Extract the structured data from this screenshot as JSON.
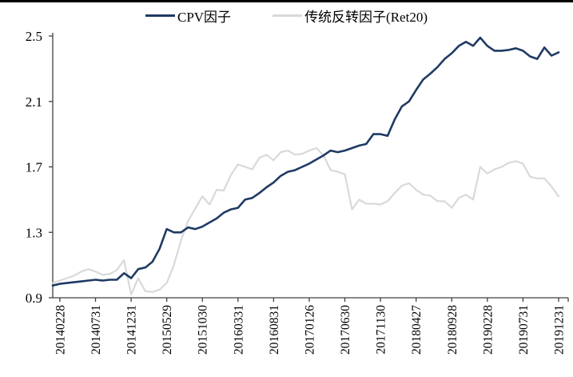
{
  "legend": {
    "items": [
      {
        "label": "CPV因子",
        "color": "#1f3a64"
      },
      {
        "label": "传统反转因子(Ret20)",
        "color": "#d9d9d9"
      }
    ]
  },
  "chart_data": {
    "type": "line",
    "title": "",
    "xlabel": "",
    "ylabel": "",
    "ylim": [
      0.9,
      2.5
    ],
    "grid": false,
    "legend_position": "top",
    "background": "#ffffff",
    "axis_color": "#404040",
    "text_color": "#000000",
    "y_ticks": [
      {
        "value": 2.5,
        "label": "2.5"
      },
      {
        "value": 2.1,
        "label": "2.1"
      },
      {
        "value": 1.7,
        "label": "1.7"
      },
      {
        "value": 1.3,
        "label": "1.3"
      },
      {
        "value": 0.9,
        "label": "0.9"
      }
    ],
    "x_tick_indices": [
      1,
      6,
      11,
      16,
      21,
      26,
      31,
      36,
      41,
      46,
      51,
      56,
      61,
      66,
      71
    ],
    "x_tick_labels": [
      "20140228",
      "20140731",
      "20141231",
      "20150529",
      "20151030",
      "20160331",
      "20160831",
      "20170126",
      "20170630",
      "20171130",
      "20180427",
      "20180928",
      "20190228",
      "20190731",
      "20191231"
    ],
    "series": [
      {
        "name": "CPV因子",
        "color": "#1f3a64",
        "width": 2.6,
        "values": [
          0.975,
          0.985,
          0.99,
          0.995,
          1.0,
          1.005,
          1.01,
          1.005,
          1.01,
          1.01,
          1.05,
          1.02,
          1.075,
          1.085,
          1.12,
          1.2,
          1.32,
          1.3,
          1.3,
          1.33,
          1.32,
          1.335,
          1.36,
          1.385,
          1.42,
          1.44,
          1.45,
          1.5,
          1.51,
          1.54,
          1.575,
          1.605,
          1.645,
          1.67,
          1.68,
          1.7,
          1.72,
          1.745,
          1.77,
          1.8,
          1.79,
          1.8,
          1.815,
          1.83,
          1.84,
          1.9,
          1.9,
          1.89,
          1.99,
          2.07,
          2.1,
          2.17,
          2.235,
          2.27,
          2.31,
          2.36,
          2.395,
          2.44,
          2.465,
          2.44,
          2.49,
          2.44,
          2.41,
          2.41,
          2.415,
          2.425,
          2.41,
          2.375,
          2.36,
          2.43,
          2.38,
          2.4
        ]
      },
      {
        "name": "传统反转因子(Ret20)",
        "color": "#d9d9d9",
        "width": 2.2,
        "values": [
          0.99,
          1.005,
          1.02,
          1.035,
          1.06,
          1.075,
          1.06,
          1.04,
          1.045,
          1.07,
          1.13,
          0.92,
          1.02,
          0.94,
          0.935,
          0.95,
          0.99,
          1.1,
          1.25,
          1.37,
          1.445,
          1.52,
          1.47,
          1.56,
          1.555,
          1.65,
          1.715,
          1.7,
          1.685,
          1.755,
          1.775,
          1.74,
          1.79,
          1.8,
          1.775,
          1.78,
          1.8,
          1.815,
          1.77,
          1.68,
          1.67,
          1.655,
          1.44,
          1.5,
          1.475,
          1.475,
          1.47,
          1.49,
          1.54,
          1.585,
          1.6,
          1.56,
          1.53,
          1.525,
          1.49,
          1.49,
          1.45,
          1.51,
          1.53,
          1.5,
          1.7,
          1.66,
          1.685,
          1.7,
          1.725,
          1.735,
          1.72,
          1.64,
          1.63,
          1.63,
          1.58,
          1.52
        ]
      }
    ]
  }
}
